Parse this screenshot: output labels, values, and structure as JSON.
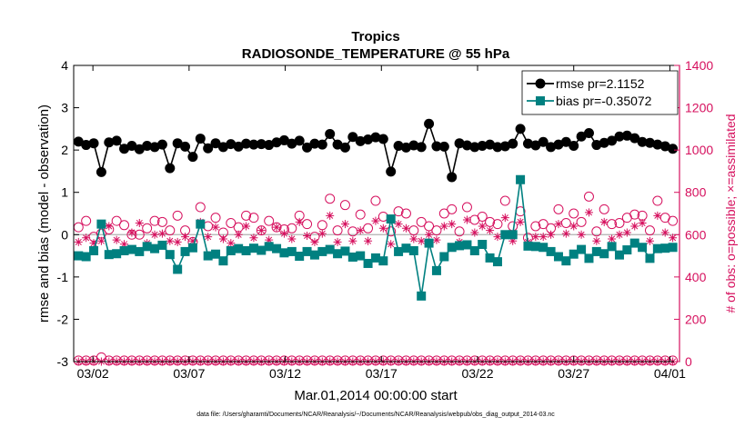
{
  "chart_data": {
    "type": "line",
    "title": "Tropics",
    "subtitle": "RADIOSONDE_TEMPERATURE @ 55 hPa",
    "xlabel": "Mar.01,2014 00:00:00 start",
    "ylabel_left": "rmse and bias (model - observation)",
    "ylabel_right": "# of obs: o=possible; ×=assimilated",
    "footnote": "data file: /Users/gharamti/Documents/NCAR/Reanalysis/~/Documents/NCAR/Reanalysis/webpub/obs_diag_output_2014-03.nc",
    "xlim": [
      0,
      31.5
    ],
    "ylim_left": [
      -3,
      4
    ],
    "ylim_right": [
      0,
      1400
    ],
    "x_ticks": [
      1,
      6,
      11,
      16,
      21,
      26,
      31
    ],
    "x_tick_labels": [
      "03/02",
      "03/07",
      "03/12",
      "03/17",
      "03/22",
      "03/27",
      "04/01"
    ],
    "y_ticks_left": [
      -3,
      -2,
      -1,
      0,
      1,
      2,
      3,
      4
    ],
    "y_ticks_right": [
      0,
      200,
      400,
      600,
      800,
      1000,
      1200,
      1400
    ],
    "legend_position": "top-right",
    "colors": {
      "rmse": "#000000",
      "bias": "#008080",
      "obs": "#d6105e",
      "zero_line": "#b0b0b0"
    },
    "series": [
      {
        "name": "rmse pr=2.1152",
        "axis": "left",
        "marker": "filled-circle",
        "values": [
          2.2,
          2.12,
          2.16,
          1.48,
          2.18,
          2.22,
          2.03,
          2.1,
          2.02,
          2.1,
          2.07,
          2.13,
          1.57,
          2.16,
          2.08,
          1.84,
          2.27,
          2.04,
          2.16,
          2.07,
          2.14,
          2.08,
          2.15,
          2.13,
          2.14,
          2.12,
          2.18,
          2.23,
          2.15,
          2.22,
          2.06,
          2.15,
          2.13,
          2.38,
          2.13,
          2.06,
          2.31,
          2.21,
          2.25,
          2.3,
          2.26,
          1.49,
          2.1,
          2.06,
          2.11,
          2.07,
          2.62,
          2.09,
          2.08,
          1.36,
          2.16,
          2.11,
          2.07,
          2.1,
          2.13,
          2.07,
          2.09,
          2.15,
          2.5,
          2.15,
          2.11,
          2.19,
          2.07,
          2.13,
          2.19,
          2.1,
          2.32,
          2.4,
          2.12,
          2.17,
          2.22,
          2.32,
          2.34,
          2.28,
          2.19,
          2.17,
          2.13,
          2.09,
          2.03
        ]
      },
      {
        "name": "bias pr=-0.35072",
        "axis": "left",
        "marker": "filled-square",
        "values": [
          -0.5,
          -0.52,
          -0.38,
          0.25,
          -0.47,
          -0.45,
          -0.38,
          -0.35,
          -0.4,
          -0.28,
          -0.33,
          -0.25,
          -0.47,
          -0.82,
          -0.4,
          -0.31,
          0.25,
          -0.5,
          -0.46,
          -0.62,
          -0.38,
          -0.33,
          -0.38,
          -0.32,
          -0.37,
          -0.28,
          -0.33,
          -0.43,
          -0.4,
          -0.51,
          -0.4,
          -0.48,
          -0.4,
          -0.35,
          -0.45,
          -0.39,
          -0.53,
          -0.5,
          -0.68,
          -0.55,
          -0.62,
          0.37,
          -0.4,
          -0.32,
          -0.38,
          -1.45,
          -0.2,
          -0.85,
          -0.52,
          -0.3,
          -0.26,
          -0.24,
          -0.38,
          -0.23,
          -0.55,
          -0.64,
          0.0,
          0.0,
          1.3,
          -0.27,
          -0.28,
          -0.3,
          -0.4,
          -0.52,
          -0.62,
          -0.46,
          -0.35,
          -0.56,
          -0.4,
          -0.45,
          -0.28,
          -0.48,
          -0.36,
          -0.2,
          -0.3,
          -0.56,
          -0.33,
          -0.32,
          -0.3
        ]
      },
      {
        "name": "possible obs",
        "axis": "right",
        "marker": "open-circle",
        "values_high": [
          635,
          665,
          590,
          605,
          625,
          665,
          645,
          600,
          600,
          630,
          665,
          660,
          620,
          690,
          620,
          565,
          730,
          640,
          680,
          610,
          655,
          635,
          690,
          680,
          620,
          665,
          635,
          625,
          630,
          690,
          650,
          590,
          645,
          770,
          620,
          740,
          615,
          695,
          630,
          760,
          685,
          615,
          710,
          700,
          620,
          660,
          640,
          620,
          700,
          720,
          615,
          730,
          670,
          685,
          660,
          650,
          760,
          640,
          710,
          585,
          640,
          650,
          630,
          720,
          655,
          700,
          660,
          780,
          615,
          720,
          650,
          655,
          680,
          695,
          690,
          620,
          760,
          680,
          665
        ],
        "values_low": [
          5,
          5,
          5,
          20,
          5,
          5,
          5,
          5,
          5,
          5,
          5,
          5,
          5,
          5,
          5,
          5,
          5,
          5,
          5,
          5,
          5,
          5,
          5,
          5,
          5,
          5,
          5,
          5,
          5,
          5,
          5,
          5,
          5,
          5,
          5,
          5,
          5,
          5,
          5,
          5,
          5,
          5,
          5,
          5,
          5,
          5,
          5,
          5,
          5,
          5,
          5,
          5,
          5,
          5,
          5,
          5,
          5,
          5,
          5,
          5,
          5,
          5,
          5,
          5,
          5,
          5,
          5,
          5,
          5,
          5,
          5,
          5,
          5,
          5,
          5,
          5,
          5,
          5,
          5
        ]
      },
      {
        "name": "assimilated obs",
        "axis": "right",
        "marker": "asterisk",
        "values_high": [
          565,
          585,
          560,
          570,
          640,
          575,
          555,
          610,
          655,
          560,
          600,
          605,
          570,
          565,
          590,
          570,
          660,
          590,
          635,
          580,
          560,
          600,
          640,
          585,
          620,
          575,
          635,
          605,
          580,
          660,
          595,
          565,
          605,
          690,
          565,
          650,
          570,
          620,
          570,
          665,
          630,
          555,
          650,
          630,
          580,
          570,
          600,
          575,
          640,
          650,
          565,
          670,
          610,
          640,
          620,
          590,
          680,
          570,
          660,
          565,
          590,
          590,
          600,
          650,
          605,
          640,
          600,
          705,
          570,
          660,
          580,
          600,
          610,
          640,
          655,
          570,
          690,
          610,
          585
        ],
        "values_low": [
          0,
          0,
          0,
          0,
          0,
          0,
          0,
          0,
          0,
          0,
          0,
          0,
          0,
          0,
          0,
          0,
          0,
          0,
          0,
          0,
          0,
          0,
          0,
          0,
          0,
          0,
          0,
          0,
          0,
          0,
          0,
          0,
          0,
          0,
          0,
          0,
          0,
          0,
          0,
          0,
          0,
          0,
          0,
          0,
          0,
          0,
          0,
          0,
          0,
          0,
          0,
          0,
          0,
          0,
          0,
          0,
          0,
          0,
          0,
          0,
          0,
          0,
          0,
          0,
          0,
          0,
          0,
          0,
          0,
          0,
          0,
          0,
          0,
          0,
          0,
          0,
          0,
          0,
          0
        ]
      }
    ]
  }
}
